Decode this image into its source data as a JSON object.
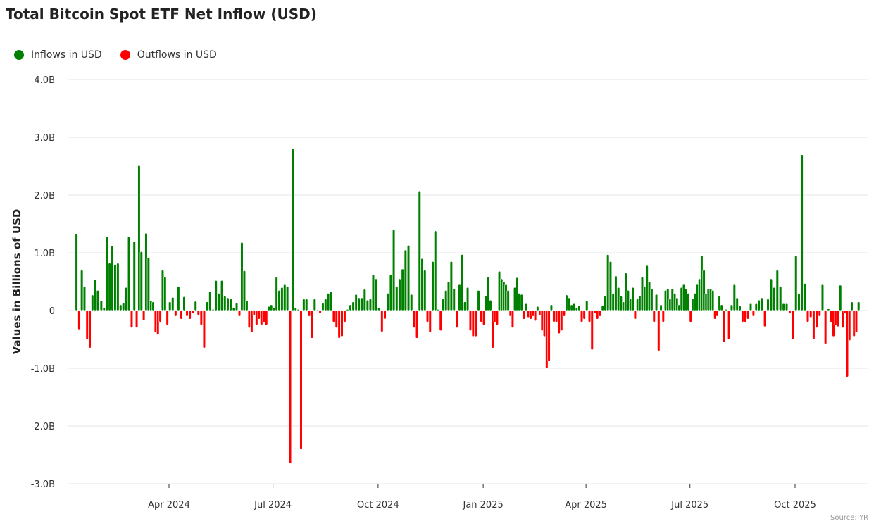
{
  "chart_data": {
    "type": "bar",
    "title": "Total Bitcoin Spot ETF Net Inflow (USD)",
    "ylabel": "Values in Billions of USD",
    "xlabel": "",
    "ylim": [
      -3.0,
      4.0
    ],
    "yticks": [
      "4.0B",
      "3.0B",
      "2.0B",
      "1.0B",
      "0",
      "-1.0B",
      "-2.0B",
      "-3.0B"
    ],
    "ytick_values": [
      4,
      3,
      2,
      1,
      0,
      -1,
      -2,
      -3
    ],
    "xticks": [
      {
        "label": "Apr 2024",
        "date": "2024-04-01"
      },
      {
        "label": "Jul 2024",
        "date": "2024-07-01"
      },
      {
        "label": "Oct 2024",
        "date": "2024-10-01"
      },
      {
        "label": "Jan 2025",
        "date": "2025-01-01"
      },
      {
        "label": "Apr 2025",
        "date": "2025-04-01"
      },
      {
        "label": "Jul 2025",
        "date": "2025-07-01"
      },
      {
        "label": "Oct 2025",
        "date": "2025-10-01"
      }
    ],
    "grid": true,
    "legend": {
      "position": "top-left",
      "entries": [
        {
          "label": "Inflows in USD",
          "color": "#008000"
        },
        {
          "label": "Outflows in USD",
          "color": "#ff0000"
        }
      ]
    },
    "source": "Source: YR",
    "unit": "billions USD",
    "monthly_daily_values": [
      {
        "month": "2024-01",
        "values": [
          1.33,
          -0.33,
          0.7,
          0.42,
          -0.5,
          -0.65,
          0.27,
          0.53,
          0.35
        ]
      },
      {
        "month": "2024-02",
        "values": [
          0.17,
          0.05,
          1.28,
          0.82,
          1.12,
          0.8,
          0.82,
          0.1,
          0.13,
          0.4,
          1.28,
          -0.3
        ]
      },
      {
        "month": "2024-03",
        "values": [
          1.2,
          -0.3,
          2.51,
          1.02,
          -0.17,
          1.34,
          0.92,
          0.17,
          0.15,
          -0.38,
          -0.42,
          -0.2,
          0.7,
          0.58,
          -0.25
        ]
      },
      {
        "month": "2024-04",
        "values": [
          0.15,
          0.23,
          -0.1,
          0.42,
          -0.15,
          0.24,
          -0.1,
          -0.15,
          -0.05,
          0.16,
          -0.08,
          -0.25
        ]
      },
      {
        "month": "2024-05",
        "values": [
          -0.65,
          0.15,
          0.33,
          0.02,
          0.52,
          0.3,
          0.52,
          0.25,
          0.22,
          0.2,
          0.05,
          0.13
        ]
      },
      {
        "month": "2024-06",
        "values": [
          -0.1,
          1.18,
          0.69,
          0.17,
          -0.3,
          -0.38,
          -0.08,
          -0.25,
          -0.15,
          -0.25,
          -0.2,
          -0.25,
          0.07,
          0.1
        ]
      },
      {
        "month": "2024-07",
        "values": [
          0.05,
          0.58,
          0.35,
          0.4,
          0.45,
          0.42,
          -2.65,
          2.81,
          0.05,
          0.02,
          -2.4,
          0.2,
          0.2
        ]
      },
      {
        "month": "2024-08",
        "values": [
          -0.1,
          -0.48,
          0.2,
          0.01,
          -0.05,
          0.13,
          0.2,
          0.3,
          0.33,
          -0.2,
          -0.3,
          -0.48,
          -0.45
        ]
      },
      {
        "month": "2024-09",
        "values": [
          -0.2,
          0.02,
          0.1,
          0.15,
          0.28,
          0.22,
          0.22,
          0.37,
          0.18,
          0.2,
          0.62,
          0.55
        ]
      },
      {
        "month": "2024-10",
        "values": [
          0.05,
          -0.37,
          -0.15,
          0.3,
          0.62,
          1.4,
          0.42,
          0.55,
          0.72,
          1.05,
          1.13,
          0.28
        ]
      },
      {
        "month": "2024-11",
        "values": [
          -0.3,
          -0.48,
          2.07,
          0.9,
          0.7,
          -0.2,
          -0.38,
          0.85,
          1.38,
          0.02,
          -0.35,
          0.2,
          0.35
        ]
      },
      {
        "month": "2024-12",
        "values": [
          0.5,
          0.85,
          0.38,
          -0.3,
          0.45,
          0.97,
          0.15,
          0.4,
          -0.35,
          -0.45,
          -0.45,
          0.35,
          -0.2
        ]
      },
      {
        "month": "2025-01",
        "values": [
          -0.25,
          0.25,
          0.58,
          0.18,
          -0.65,
          -0.2,
          -0.25,
          0.68,
          0.55,
          0.5,
          0.45,
          0.35,
          -0.1,
          -0.3,
          0.4,
          0.57
        ]
      },
      {
        "month": "2025-02",
        "values": [
          0.3,
          0.28,
          -0.15,
          0.12,
          -0.12,
          -0.15,
          -0.1,
          -0.18,
          0.07,
          -0.08,
          -0.35,
          -0.45,
          -1.0,
          -0.88
        ]
      },
      {
        "month": "2025-03",
        "values": [
          0.1,
          -0.2,
          -0.2,
          -0.4,
          -0.35,
          -0.1,
          0.27,
          0.22,
          0.1,
          0.12,
          0.05,
          0.08,
          -0.2,
          -0.15
        ]
      },
      {
        "month": "2025-04",
        "values": [
          0.17,
          -0.2,
          -0.68,
          -0.05,
          -0.15,
          -0.1,
          0.08,
          0.25,
          0.97,
          0.85,
          0.3,
          0.6,
          0.4
        ]
      },
      {
        "month": "2025-05",
        "values": [
          0.25,
          0.15,
          0.65,
          0.35,
          0.2,
          0.4,
          -0.15,
          0.2,
          0.25,
          0.58,
          0.42,
          0.78,
          0.5,
          0.38,
          -0.2
        ]
      },
      {
        "month": "2025-06",
        "values": [
          0.28,
          -0.7,
          0.1,
          -0.2,
          0.35,
          0.38,
          0.2,
          0.38,
          0.3,
          0.22,
          0.1,
          0.4,
          0.45,
          0.38,
          0.3
        ]
      },
      {
        "month": "2025-07",
        "values": [
          -0.2,
          0.2,
          0.3,
          0.45,
          0.55,
          0.95,
          0.7,
          0.3,
          0.38,
          0.38,
          0.35,
          -0.15,
          -0.1,
          0.25,
          0.1,
          -0.55
        ]
      },
      {
        "month": "2025-08",
        "values": [
          0.02,
          -0.5,
          0.1,
          0.45,
          0.22,
          0.08,
          -0.2,
          -0.2,
          -0.15,
          0.12,
          -0.1,
          0.12,
          0.18
        ]
      },
      {
        "month": "2025-09",
        "values": [
          0.22,
          -0.28,
          0.2,
          0.55,
          0.4,
          0.7,
          0.42,
          0.12,
          0.12,
          -0.05,
          -0.5
        ]
      },
      {
        "month": "2025-10",
        "values": [
          0.95,
          0.3,
          2.7,
          0.47,
          -0.2,
          -0.12,
          -0.5,
          -0.3,
          -0.1,
          0.45,
          -0.58,
          0.03
        ]
      },
      {
        "month": "2025-11",
        "values": [
          -0.2,
          -0.45,
          -0.25,
          -0.28,
          0.44,
          -0.3,
          -0.05,
          -1.15,
          -0.52,
          0.15,
          -0.45,
          -0.38,
          0.15
        ]
      }
    ]
  }
}
